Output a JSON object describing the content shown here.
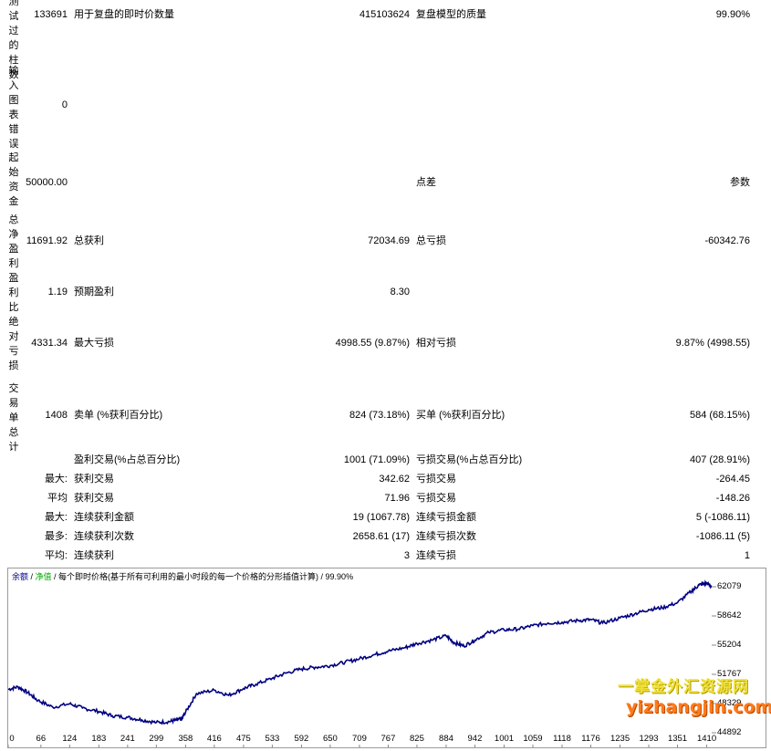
{
  "side_labels": {
    "bars_tested": "测试过的柱数",
    "mismatch_errors": "输入图表错误",
    "initial_deposit": "起始资金",
    "total_net_profit": "总净盈利",
    "profit_factor": "盈利比",
    "abs_drawdown": "绝对亏损",
    "total_trades": "交易单总计"
  },
  "row1": {
    "value": "133691",
    "label": "用于复盘的即时价数量",
    "value2": "415103624",
    "label2": "复盘模型的质量",
    "value3": "99.90%"
  },
  "row2": {
    "value": "0"
  },
  "row3": {
    "value": "50000.00",
    "label2": "点差",
    "value3": "参数"
  },
  "row4": {
    "value": "11691.92",
    "label": "总获利",
    "value2": "72034.69",
    "label2": "总亏损",
    "value3": "-60342.76"
  },
  "row5": {
    "value": "1.19",
    "label": "预期盈利",
    "value2": "8.30"
  },
  "row6": {
    "value": "4331.34",
    "label": "最大亏损",
    "value2": "4998.55 (9.87%)",
    "label2": "相对亏损",
    "value3": "9.87% (4998.55)"
  },
  "row7": {
    "value": "1408",
    "label": "卖单 (%获利百分比)",
    "value2": "824 (73.18%)",
    "label2": "买单 (%获利百分比)",
    "value3": "584 (68.15%)"
  },
  "row8": {
    "label": "盈利交易(%占总百分比)",
    "value2": "1001 (71.09%)",
    "label2": "亏损交易(%占总百分比)",
    "value3": "407 (28.91%)"
  },
  "row9": {
    "prefix": "最大:",
    "label": "获利交易",
    "value2": "342.62",
    "label2": "亏损交易",
    "value3": "-264.45"
  },
  "row10": {
    "prefix": "平均",
    "label": "获利交易",
    "value2": "71.96",
    "label2": "亏损交易",
    "value3": "-148.26"
  },
  "row11": {
    "prefix": "最大:",
    "label": "连续获利金额",
    "value2": "19 (1067.78)",
    "label2": "连续亏损金额",
    "value3": "5 (-1086.11)"
  },
  "row12": {
    "prefix": "最多:",
    "label": "连续获利次数",
    "value2": "2658.61 (17)",
    "label2": "连续亏损次数",
    "value3": "-1086.11 (5)"
  },
  "row13": {
    "prefix": "平均:",
    "label": "连续获利",
    "value2": "3",
    "label2": "连续亏损",
    "value3": "1"
  },
  "chart": {
    "legend_balance": "余额",
    "legend_sep1": " / ",
    "legend_equity": "净值",
    "legend_rest": " / 每个即时价格(基于所有可利用的最小时段的每一个价格的分形插值计算) / 99.90%",
    "balance_color": "#000080",
    "equity_color": "#00aa00",
    "y_ticks": [
      "62079",
      "58642",
      "55204",
      "51767",
      "48329",
      "44892"
    ],
    "x_ticks": [
      "0",
      "66",
      "124",
      "183",
      "241",
      "299",
      "358",
      "416",
      "475",
      "533",
      "592",
      "650",
      "709",
      "767",
      "825",
      "884",
      "942",
      "1001",
      "1059",
      "1118",
      "1176",
      "1235",
      "1293",
      "1351",
      "1410"
    ]
  },
  "watermark": {
    "line1": "一掌金外汇资源网",
    "line2": "yizhangjin.com"
  },
  "chart_data": {
    "type": "line",
    "series": [
      {
        "name": "余额",
        "x": [
          0,
          20,
          40,
          60,
          90,
          124,
          150,
          183,
          210,
          241,
          270,
          299,
          325,
          340,
          350,
          358,
          380,
          416,
          445,
          475,
          500,
          533,
          560,
          592,
          620,
          650,
          680,
          709,
          740,
          767,
          800,
          825,
          855,
          884,
          900,
          920,
          942,
          970,
          1001,
          1030,
          1059,
          1090,
          1118,
          1150,
          1176,
          1200,
          1235,
          1265,
          1293,
          1320,
          1351,
          1380,
          1395,
          1410,
          1420
        ],
        "y": [
          50000,
          50300,
          49600,
          48700,
          47900,
          48300,
          47800,
          47400,
          46900,
          46700,
          46400,
          46100,
          46200,
          46400,
          46500,
          47300,
          49500,
          49900,
          49300,
          50100,
          50600,
          51300,
          51900,
          52400,
          52600,
          52800,
          53200,
          53600,
          54100,
          54500,
          54900,
          55400,
          55800,
          56300,
          55500,
          55100,
          55800,
          56700,
          57000,
          57100,
          57500,
          57800,
          57900,
          58100,
          58200,
          57800,
          58400,
          58900,
          59400,
          59600,
          60200,
          61600,
          62300,
          62500,
          62100
        ]
      }
    ],
    "ylim": [
      44892,
      62079
    ],
    "xlim": [
      0,
      1420
    ],
    "y_ticks": [
      62079,
      58642,
      55204,
      51767,
      48329,
      44892
    ],
    "x_ticks": [
      0,
      66,
      124,
      183,
      241,
      299,
      358,
      416,
      475,
      533,
      592,
      650,
      709,
      767,
      825,
      884,
      942,
      1001,
      1059,
      1118,
      1176,
      1235,
      1293,
      1351,
      1410
    ]
  }
}
